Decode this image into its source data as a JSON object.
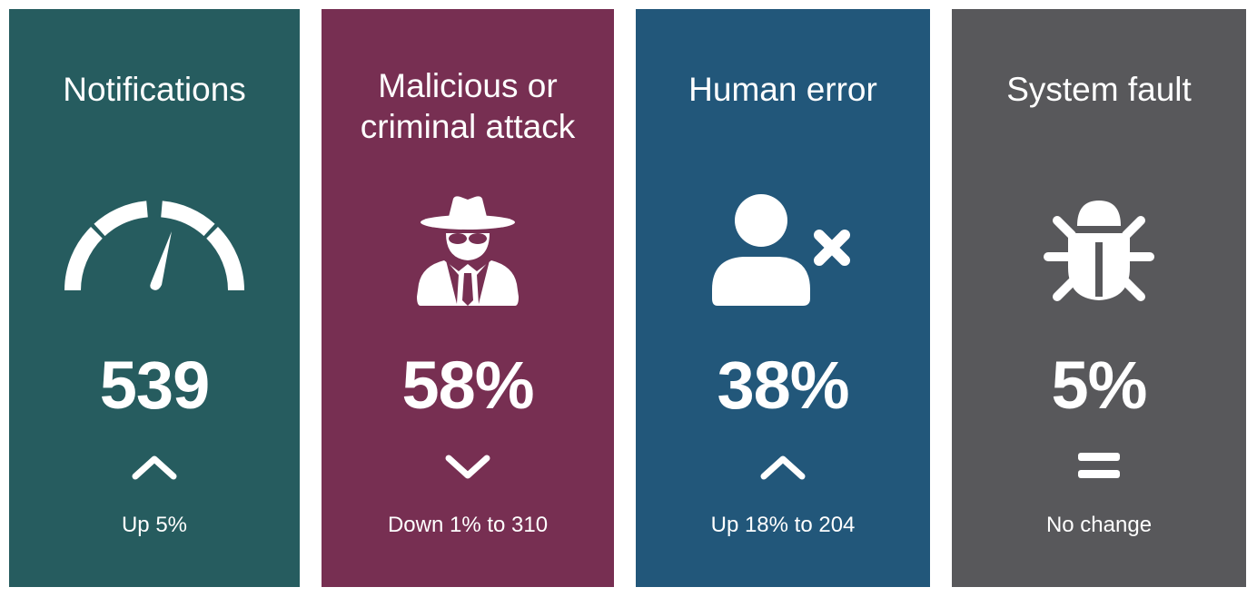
{
  "cards": [
    {
      "title": "Notifications",
      "icon": "speedometer-icon",
      "value": "539",
      "trend": "up",
      "caption": "Up 5%",
      "color": "#265c5f"
    },
    {
      "title": "Malicious or criminal attack",
      "icon": "spy-icon",
      "value": "58%",
      "trend": "down",
      "caption": "Down 1% to 310",
      "color": "#772f52"
    },
    {
      "title": "Human error",
      "icon": "user-x-icon",
      "value": "38%",
      "trend": "up",
      "caption": "Up 18% to 204",
      "color": "#22577a"
    },
    {
      "title": "System fault",
      "icon": "bug-icon",
      "value": "5%",
      "trend": "no-change",
      "caption": "No change",
      "color": "#58585b"
    }
  ]
}
